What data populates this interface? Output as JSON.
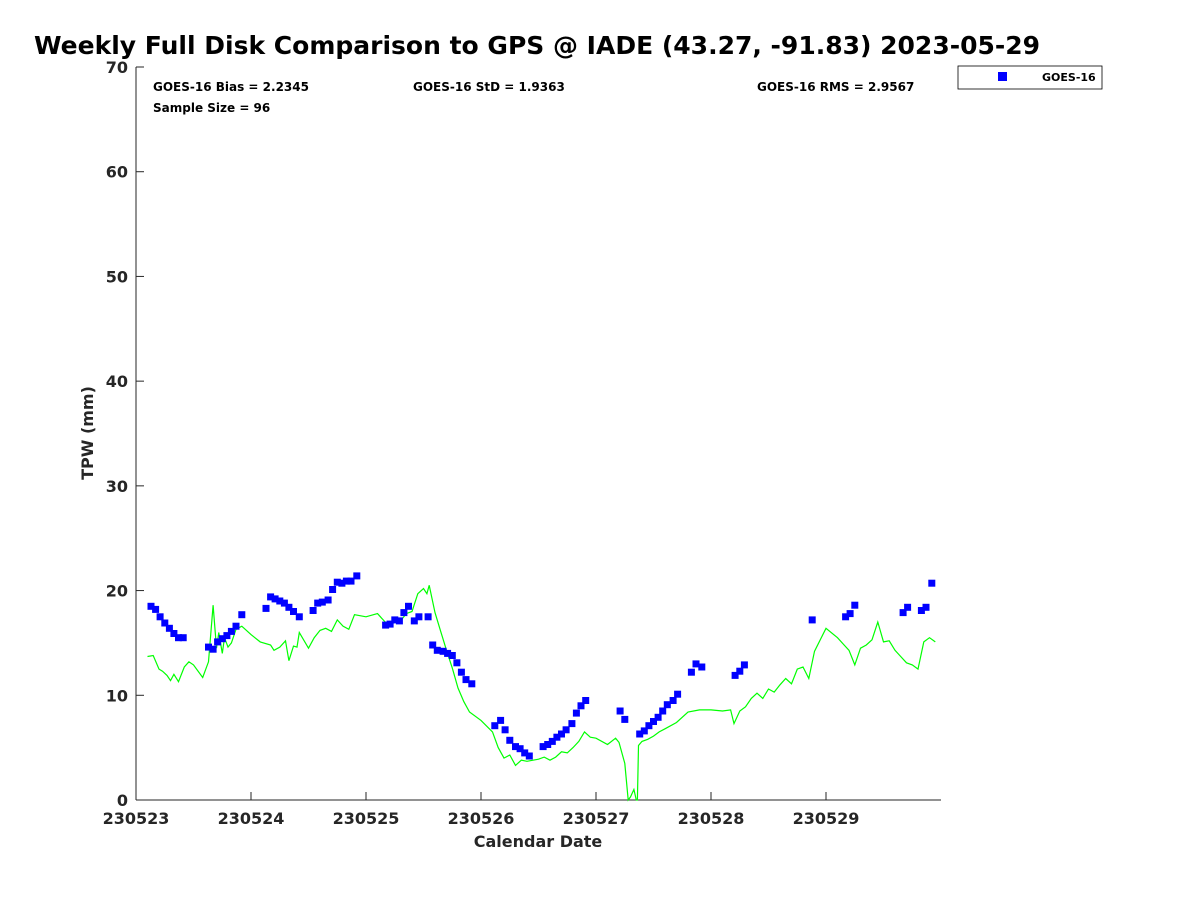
{
  "chart_data": {
    "type": "scatter",
    "title": "Weekly Full Disk Comparison to GPS @ IADE (43.27, -91.83) 2023-05-29",
    "xlabel": "Calendar Date",
    "ylabel": "TPW (mm)",
    "xlim": [
      230523,
      230530
    ],
    "ylim": [
      0,
      70
    ],
    "x_ticks": [
      230523,
      230524,
      230525,
      230526,
      230527,
      230528,
      230529
    ],
    "x_tick_labels": [
      "230523",
      "230524",
      "230525",
      "230526",
      "230527",
      "230528",
      "230529"
    ],
    "y_ticks": [
      0,
      10,
      20,
      30,
      40,
      50,
      60,
      70
    ],
    "y_tick_labels": [
      "0",
      "10",
      "20",
      "30",
      "40",
      "50",
      "60",
      "70"
    ],
    "grid": false,
    "legend_position": "top-right",
    "stats": {
      "bias": "GOES-16 Bias = 2.2345",
      "std": "GOES-16 StD = 1.9363",
      "rms": "GOES-16 RMS = 2.9567",
      "sample": "Sample Size = 96"
    },
    "series": [
      {
        "name": "GOES-16",
        "kind": "markers",
        "marker": "square",
        "color": "#0000ff",
        "x": [
          230523.13,
          230523.17,
          230523.21,
          230523.25,
          230523.29,
          230523.33,
          230523.37,
          230523.41,
          230523.63,
          230523.67,
          230523.71,
          230523.75,
          230523.79,
          230523.83,
          230523.87,
          230523.92,
          230524.13,
          230524.17,
          230524.21,
          230524.25,
          230524.29,
          230524.33,
          230524.37,
          230524.42,
          230524.54,
          230524.58,
          230524.62,
          230524.67,
          230524.71,
          230524.75,
          230524.79,
          230524.83,
          230524.87,
          230524.92,
          230525.17,
          230525.21,
          230525.25,
          230525.29,
          230525.33,
          230525.37,
          230525.42,
          230525.46,
          230525.54,
          230525.58,
          230525.62,
          230525.67,
          230525.71,
          230525.75,
          230525.79,
          230525.83,
          230525.87,
          230525.92,
          230526.12,
          230526.17,
          230526.21,
          230526.25,
          230526.3,
          230526.34,
          230526.38,
          230526.42,
          230526.54,
          230526.58,
          230526.62,
          230526.66,
          230526.7,
          230526.74,
          230526.79,
          230526.83,
          230526.87,
          230526.91,
          230527.21,
          230527.25,
          230527.38,
          230527.42,
          230527.46,
          230527.5,
          230527.54,
          230527.58,
          230527.62,
          230527.67,
          230527.71,
          230527.83,
          230527.87,
          230527.92,
          230528.21,
          230528.25,
          230528.29,
          230528.88,
          230529.17,
          230529.21,
          230529.25,
          230529.67,
          230529.71,
          230529.83,
          230529.87,
          230529.92
        ],
        "y": [
          18.5,
          18.2,
          17.5,
          16.9,
          16.4,
          15.9,
          15.5,
          15.5,
          14.6,
          14.4,
          15.1,
          15.4,
          15.7,
          16.1,
          16.6,
          17.7,
          18.3,
          19.4,
          19.2,
          19.0,
          18.8,
          18.4,
          18.0,
          17.5,
          18.1,
          18.8,
          18.9,
          19.1,
          20.1,
          20.8,
          20.7,
          20.9,
          20.9,
          21.4,
          16.7,
          16.8,
          17.2,
          17.1,
          17.9,
          18.5,
          17.1,
          17.5,
          17.5,
          14.8,
          14.3,
          14.2,
          14.0,
          13.8,
          13.1,
          12.2,
          11.5,
          11.1,
          7.1,
          7.6,
          6.7,
          5.7,
          5.1,
          4.9,
          4.5,
          4.2,
          5.1,
          5.3,
          5.6,
          6.0,
          6.3,
          6.7,
          7.3,
          8.3,
          9.0,
          9.5,
          8.5,
          7.7,
          6.3,
          6.6,
          7.1,
          7.5,
          7.9,
          8.5,
          9.1,
          9.5,
          10.1,
          12.2,
          13.0,
          12.7,
          11.9,
          12.3,
          12.9,
          17.2,
          17.5,
          17.8,
          18.6,
          17.9,
          18.4,
          18.1,
          18.4,
          20.7
        ]
      },
      {
        "name": "GPS",
        "kind": "line",
        "color": "#00ff00",
        "x": [
          230523.1,
          230523.15,
          230523.2,
          230523.23,
          230523.27,
          230523.3,
          230523.33,
          230523.37,
          230523.42,
          230523.46,
          230523.5,
          230523.58,
          230523.63,
          230523.67,
          230523.7,
          230523.72,
          230523.75,
          230523.77,
          230523.8,
          230523.83,
          230523.87,
          230523.92,
          230524.0,
          230524.08,
          230524.17,
          230524.2,
          230524.25,
          230524.3,
          230524.33,
          230524.37,
          230524.4,
          230524.42,
          230524.5,
          230524.55,
          230524.6,
          230524.65,
          230524.7,
          230524.75,
          230524.8,
          230524.85,
          230524.9,
          230525.0,
          230525.1,
          230525.15,
          230525.2,
          230525.25,
          230525.3,
          230525.35,
          230525.4,
          230525.45,
          230525.5,
          230525.53,
          230525.55,
          230525.6,
          230525.65,
          230525.7,
          230525.75,
          230525.8,
          230525.85,
          230525.9,
          230526.0,
          230526.1,
          230526.15,
          230526.2,
          230526.25,
          230526.3,
          230526.35,
          230526.4,
          230526.5,
          230526.55,
          230526.6,
          230526.65,
          230526.7,
          230526.75,
          230526.8,
          230526.85,
          230526.9,
          230526.95,
          230527.0,
          230527.1,
          230527.17,
          230527.2,
          230527.25,
          230527.28,
          230527.3,
          230527.33,
          230527.35,
          230527.36,
          230527.37,
          230527.4,
          230527.45,
          230527.5,
          230527.55,
          230527.6,
          230527.7,
          230527.8,
          230527.9,
          230528.0,
          230528.1,
          230528.17,
          230528.2,
          230528.25,
          230528.3,
          230528.35,
          230528.4,
          230528.45,
          230528.5,
          230528.55,
          230528.6,
          230528.65,
          230528.7,
          230528.75,
          230528.8,
          230528.85,
          230528.9,
          230529.0,
          230529.1,
          230529.15,
          230529.2,
          230529.25,
          230529.3,
          230529.35,
          230529.4,
          230529.45,
          230529.5,
          230529.55,
          230529.6,
          230529.65,
          230529.7,
          230529.75,
          230529.8,
          230529.85,
          230529.9,
          230529.95
        ],
        "y": [
          13.7,
          13.8,
          12.5,
          12.3,
          11.9,
          11.4,
          12.0,
          11.3,
          12.7,
          13.2,
          12.9,
          11.7,
          13.2,
          18.6,
          14.5,
          16.0,
          14.0,
          15.5,
          14.6,
          15.0,
          16.3,
          16.6,
          15.8,
          15.1,
          14.8,
          14.3,
          14.6,
          15.2,
          13.3,
          14.7,
          14.6,
          16.0,
          14.5,
          15.5,
          16.2,
          16.4,
          16.1,
          17.2,
          16.6,
          16.3,
          17.7,
          17.5,
          17.8,
          17.2,
          16.6,
          17.0,
          17.1,
          17.8,
          18.0,
          19.7,
          20.2,
          19.7,
          20.5,
          17.9,
          16.1,
          14.3,
          12.6,
          10.7,
          9.4,
          8.4,
          7.6,
          6.5,
          5.0,
          4.0,
          4.3,
          3.3,
          3.8,
          3.7,
          3.9,
          4.1,
          3.8,
          4.1,
          4.6,
          4.5,
          5.0,
          5.6,
          6.5,
          6.0,
          5.9,
          5.3,
          5.9,
          5.5,
          3.5,
          0.0,
          0.3,
          1.0,
          0.0,
          0.0,
          5.2,
          5.6,
          5.8,
          6.1,
          6.5,
          6.8,
          7.4,
          8.4,
          8.6,
          8.6,
          8.5,
          8.6,
          7.3,
          8.5,
          8.9,
          9.7,
          10.2,
          9.7,
          10.6,
          10.3,
          11.0,
          11.6,
          11.1,
          12.5,
          12.7,
          11.6,
          14.2,
          16.4,
          15.5,
          14.9,
          14.3,
          12.9,
          14.5,
          14.8,
          15.3,
          17.0,
          15.1,
          15.2,
          14.3,
          13.7,
          13.1,
          12.9,
          12.5,
          15.1,
          15.5,
          15.1
        ]
      }
    ]
  }
}
